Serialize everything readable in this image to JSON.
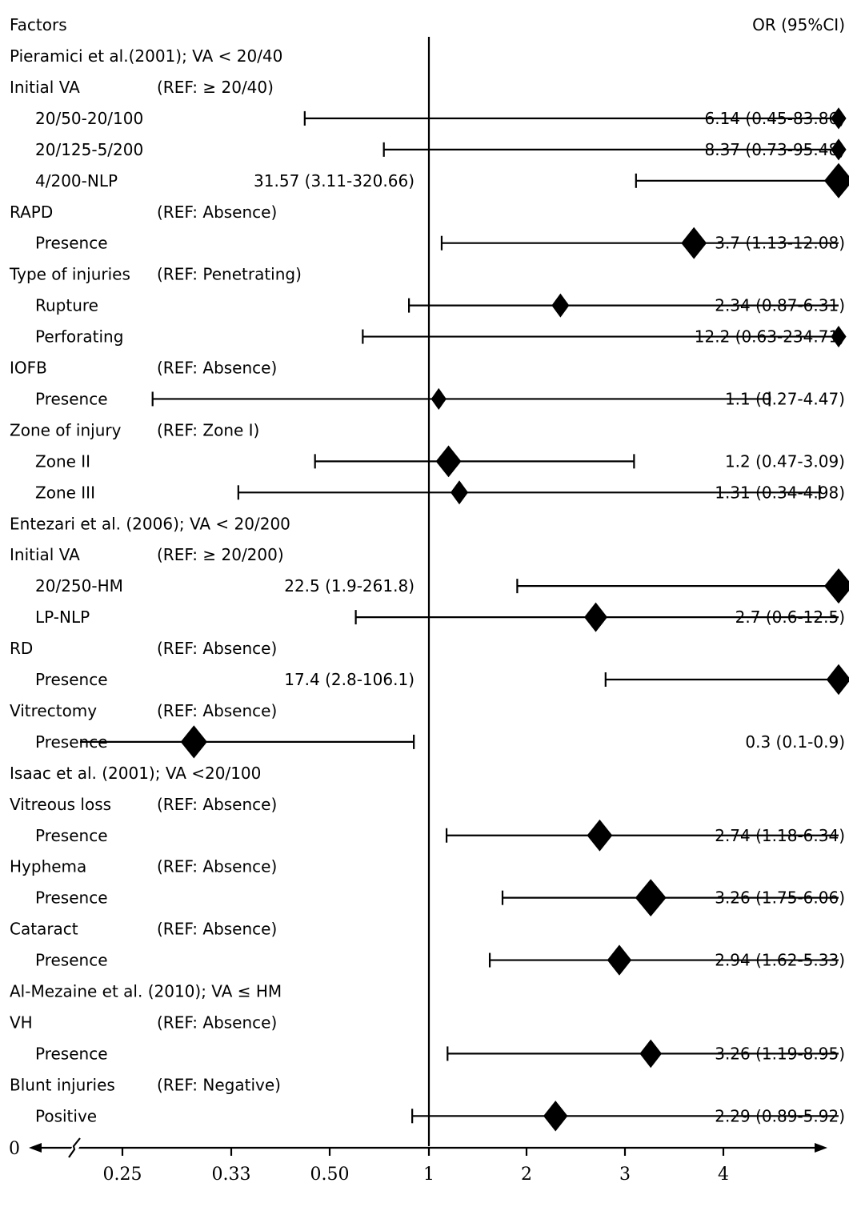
{
  "chart_data": {
    "type": "forest",
    "header_left": "Factors",
    "header_right": "OR (95%CI)",
    "x_axis": {
      "origin_label": "0",
      "ticks": [
        {
          "value": 0.25,
          "label": "0.25"
        },
        {
          "value": 0.33,
          "label": "0.33"
        },
        {
          "value": 0.5,
          "label": "0.50"
        },
        {
          "value": 1,
          "label": "1"
        },
        {
          "value": 2,
          "label": "2"
        },
        {
          "value": 3,
          "label": "3"
        },
        {
          "value": 4,
          "label": "4"
        }
      ],
      "reference_line": 1
    },
    "rows": [
      {
        "kind": "study",
        "label": "Pieramici et al.(2001); VA < 20/40"
      },
      {
        "kind": "factor",
        "label": "Initial VA",
        "ref": "(REF: ≥ 20/40)"
      },
      {
        "kind": "level",
        "label": "20/50-20/100",
        "or": 6.14,
        "lo": 0.45,
        "hi": 83.86,
        "text": "6.14 (0.45-83.86)",
        "size": 0.4
      },
      {
        "kind": "level",
        "label": "20/125-5/200",
        "or": 8.37,
        "lo": 0.73,
        "hi": 95.48,
        "text": "8.37 (0.73-95.48)",
        "size": 0.4
      },
      {
        "kind": "level",
        "label": "4/200-NLP",
        "or": 31.57,
        "lo": 3.11,
        "hi": 320.66,
        "text": "31.57 (3.11-320.66)",
        "size": 1,
        "text_pos": "mid"
      },
      {
        "kind": "factor",
        "label": "RAPD",
        "ref": "(REF: Absence)"
      },
      {
        "kind": "level",
        "label": "Presence",
        "or": 3.7,
        "lo": 1.13,
        "hi": 12.08,
        "text": "3.7 (1.13-12.08)",
        "size": 0.85
      },
      {
        "kind": "factor",
        "label": "Type of injuries",
        "ref": "(REF: Penetrating)"
      },
      {
        "kind": "level",
        "label": "Rupture",
        "or": 2.34,
        "lo": 0.87,
        "hi": 6.31,
        "text": "2.34 (0.87-6.31)",
        "size": 0.5
      },
      {
        "kind": "level",
        "label": "Perforating",
        "or": 12.2,
        "lo": 0.63,
        "hi": 234.71,
        "text": "12.2 (0.63-234.71)",
        "size": 0.4
      },
      {
        "kind": "factor",
        "label": "IOFB",
        "ref": "(REF: Absence)"
      },
      {
        "kind": "level",
        "label": "Presence",
        "or": 1.1,
        "lo": 0.27,
        "hi": 4.47,
        "text": "1.1 (0.27-4.47)",
        "size": 0.4
      },
      {
        "kind": "factor",
        "label": "Zone of injury",
        "ref": "(REF: Zone I)"
      },
      {
        "kind": "level",
        "label": "Zone II",
        "or": 1.2,
        "lo": 0.47,
        "hi": 3.09,
        "text": "1.2 (0.47-3.09)",
        "size": 0.85
      },
      {
        "kind": "level",
        "label": "Zone III",
        "or": 1.31,
        "lo": 0.34,
        "hi": 4.98,
        "text": "1.31 (0.34-4.98)",
        "size": 0.5
      },
      {
        "kind": "study",
        "label": "Entezari et al. (2006); VA < 20/200"
      },
      {
        "kind": "factor",
        "label": "Initial VA",
        "ref": "(REF: ≥ 20/200)"
      },
      {
        "kind": "level",
        "label": "20/250-HM",
        "or": 22.5,
        "lo": 1.9,
        "hi": 261.8,
        "text": "22.5 (1.9-261.8)",
        "size": 1,
        "text_pos": "mid"
      },
      {
        "kind": "level",
        "label": "LP-NLP",
        "or": 2.7,
        "lo": 0.6,
        "hi": 12.5,
        "text": "2.7 (0.6-12.5)",
        "size": 0.75
      },
      {
        "kind": "factor",
        "label": "RD",
        "ref": "(REF: Absence)"
      },
      {
        "kind": "level",
        "label": "Presence",
        "or": 17.4,
        "lo": 2.8,
        "hi": 106.1,
        "text": "17.4 (2.8-106.1)",
        "size": 0.8,
        "text_pos": "mid"
      },
      {
        "kind": "factor",
        "label": "Vitrectomy",
        "ref": "(REF: Absence)"
      },
      {
        "kind": "level",
        "label": "Presence",
        "or": 0.3,
        "lo": 0.1,
        "hi": 0.9,
        "text": "0.3 (0.1-0.9)",
        "size": 0.9
      },
      {
        "kind": "study",
        "label": "Isaac et al. (2001); VA <20/100"
      },
      {
        "kind": "factor",
        "label": "Vitreous loss",
        "ref": "(REF: Absence)"
      },
      {
        "kind": "level",
        "label": "Presence",
        "or": 2.74,
        "lo": 1.18,
        "hi": 6.34,
        "text": "2.74 (1.18-6.34)",
        "size": 0.85
      },
      {
        "kind": "factor",
        "label": "Hyphema",
        "ref": "(REF: Absence)"
      },
      {
        "kind": "level",
        "label": "Presence",
        "or": 3.26,
        "lo": 1.75,
        "hi": 6.06,
        "text": "3.26 (1.75-6.06)",
        "size": 1.1
      },
      {
        "kind": "factor",
        "label": "Cataract",
        "ref": "(REF: Absence)"
      },
      {
        "kind": "level",
        "label": "Presence",
        "or": 2.94,
        "lo": 1.62,
        "hi": 5.33,
        "text": "2.94 (1.62-5.33)",
        "size": 0.8
      },
      {
        "kind": "study",
        "label": "Al-Mezaine et al. (2010); VA ≤ HM"
      },
      {
        "kind": "factor",
        "label": "VH",
        "ref": "(REF: Absence)"
      },
      {
        "kind": "level",
        "label": "Presence",
        "or": 3.26,
        "lo": 1.19,
        "hi": 8.95,
        "text": "3.26 (1.19-8.95)",
        "size": 0.7
      },
      {
        "kind": "factor",
        "label": "Blunt injuries",
        "ref": "(REF: Negative)"
      },
      {
        "kind": "level",
        "label": "Positive",
        "or": 2.29,
        "lo": 0.89,
        "hi": 5.92,
        "text": "2.29 (0.89-5.92)",
        "size": 0.8
      }
    ]
  }
}
